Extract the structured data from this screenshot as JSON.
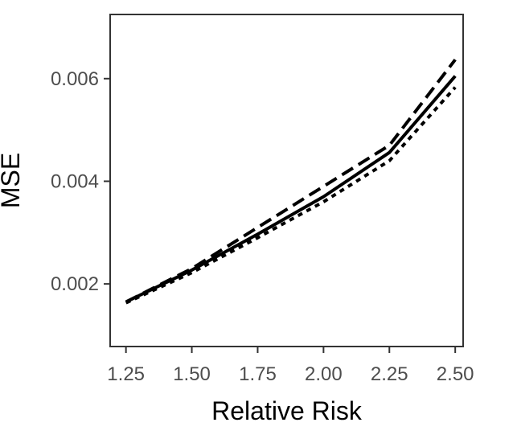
{
  "chart_data": {
    "type": "line",
    "xlabel": "Relative Risk",
    "ylabel": "MSE",
    "x": [
      1.25,
      1.5,
      1.75,
      2.0,
      2.25,
      2.5
    ],
    "xticks": [
      "1.25",
      "1.50",
      "1.75",
      "2.00",
      "2.25",
      "2.50"
    ],
    "yticks": [
      {
        "value": 0.002,
        "label": "0.002"
      },
      {
        "value": 0.004,
        "label": "0.004"
      },
      {
        "value": 0.006,
        "label": "0.006"
      }
    ],
    "xlim": [
      1.19,
      2.53
    ],
    "ylim": [
      0.00078,
      0.00725
    ],
    "grid": false,
    "legend": "none",
    "series": [
      {
        "style": "solid",
        "values": [
          0.00165,
          0.00227,
          0.00297,
          0.0037,
          0.00456,
          0.00605
        ]
      },
      {
        "style": "dashed",
        "values": [
          0.00165,
          0.0023,
          0.0031,
          0.0039,
          0.0047,
          0.00637
        ]
      },
      {
        "style": "dotted",
        "values": [
          0.00163,
          0.00222,
          0.0029,
          0.0036,
          0.0044,
          0.00583
        ]
      }
    ],
    "colors": {
      "line": "#000000",
      "axis": "#333333",
      "tick_text": "#4d4d4d"
    }
  }
}
